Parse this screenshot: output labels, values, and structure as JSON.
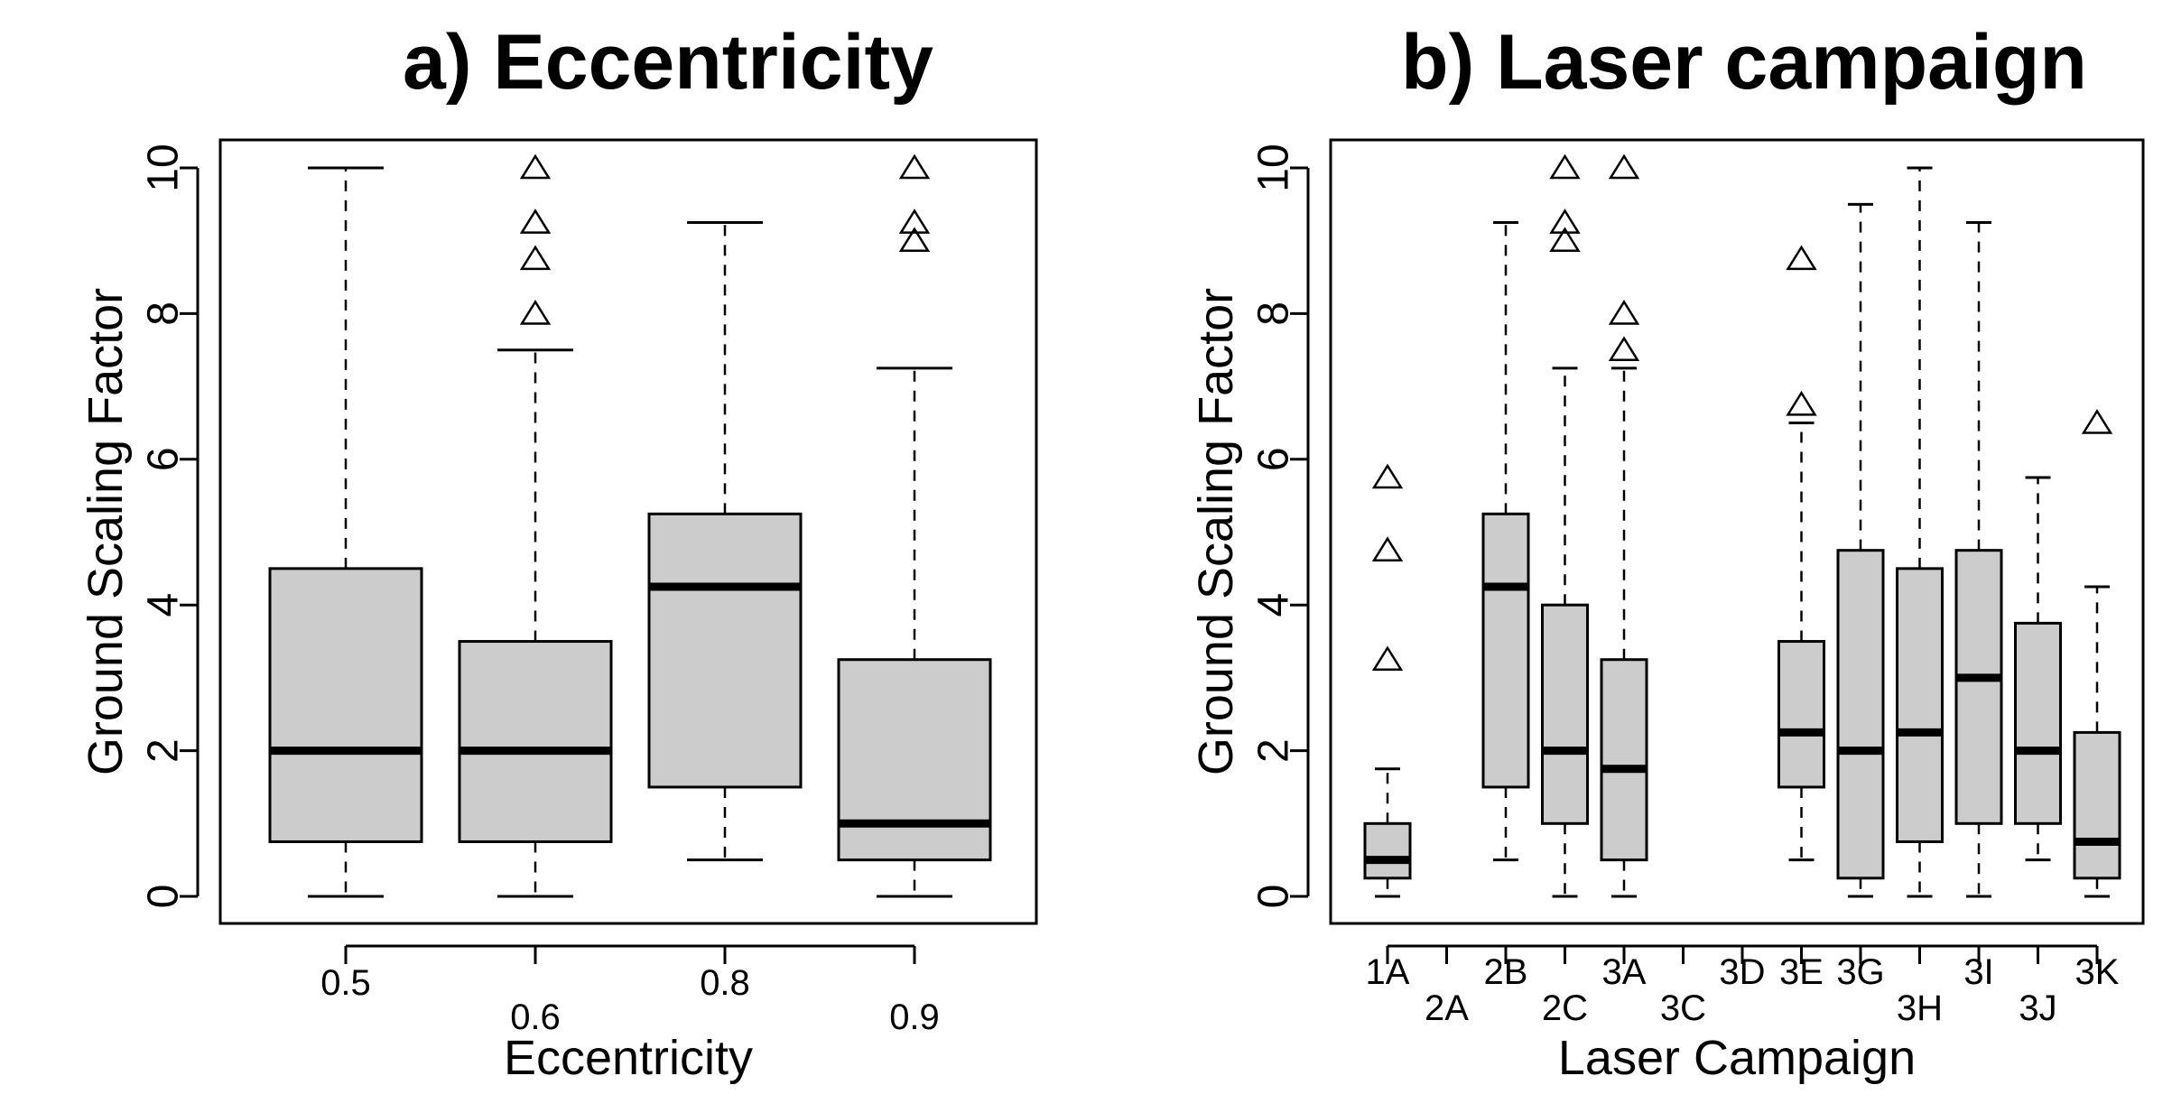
{
  "chart_data": [
    {
      "type": "box",
      "title": "a) Eccentricity",
      "xlabel": "Eccentricity",
      "ylabel": "Ground Scaling Factor",
      "ylim": [
        0,
        10
      ],
      "yticks": [
        "0",
        "2",
        "4",
        "6",
        "8",
        "10"
      ],
      "fill_color": "#cccccc",
      "categories": [
        "0.5",
        "0.6",
        "0.8",
        "0.9"
      ],
      "label_row": [
        0,
        1,
        0,
        1
      ],
      "boxes": [
        {
          "min": 0,
          "q1": 0.75,
          "median": 2.0,
          "q3": 4.5,
          "max": 10,
          "outliers": []
        },
        {
          "min": 0,
          "q1": 0.75,
          "median": 2.0,
          "q3": 3.5,
          "max": 7.5,
          "outliers": [
            8,
            8.75,
            9.25,
            10
          ]
        },
        {
          "min": 0.5,
          "q1": 1.5,
          "median": 4.25,
          "q3": 5.25,
          "max": 9.25,
          "outliers": []
        },
        {
          "min": 0,
          "q1": 0.5,
          "median": 1.0,
          "q3": 3.25,
          "max": 7.25,
          "outliers": [
            9,
            9.25,
            10
          ]
        }
      ]
    },
    {
      "type": "box",
      "title": "b) Laser campaign",
      "xlabel": "Laser Campaign",
      "ylabel": "Ground Scaling Factor",
      "ylim": [
        0,
        10
      ],
      "yticks": [
        "0",
        "2",
        "4",
        "6",
        "8",
        "10"
      ],
      "fill_color": "#cccccc",
      "categories": [
        "1A",
        "2A",
        "2B",
        "2C",
        "3A",
        "3C",
        "3D",
        "3E",
        "3G",
        "3H",
        "3I",
        "3J",
        "3K"
      ],
      "label_row": [
        0,
        1,
        0,
        1,
        0,
        1,
        0,
        0,
        0,
        1,
        0,
        1,
        0
      ],
      "boxes": [
        {
          "min": 0,
          "q1": 0.25,
          "median": 0.5,
          "q3": 1.0,
          "max": 1.75,
          "outliers": [
            3.25,
            4.75,
            5.75
          ]
        },
        null,
        {
          "min": 0.5,
          "q1": 1.5,
          "median": 4.25,
          "q3": 5.25,
          "max": 9.25,
          "outliers": []
        },
        {
          "min": 0,
          "q1": 1.0,
          "median": 2.0,
          "q3": 4.0,
          "max": 7.25,
          "outliers": [
            9,
            9.25,
            10
          ]
        },
        {
          "min": 0,
          "q1": 0.5,
          "median": 1.75,
          "q3": 3.25,
          "max": 7.25,
          "outliers": [
            7.5,
            8,
            10
          ]
        },
        null,
        null,
        {
          "min": 0.5,
          "q1": 1.5,
          "median": 2.25,
          "q3": 3.5,
          "max": 6.5,
          "outliers": [
            6.75,
            8.75
          ]
        },
        {
          "min": 0,
          "q1": 0.25,
          "median": 2.0,
          "q3": 4.75,
          "max": 9.5,
          "outliers": []
        },
        {
          "min": 0,
          "q1": 0.75,
          "median": 2.25,
          "q3": 4.5,
          "max": 10,
          "outliers": []
        },
        {
          "min": 0,
          "q1": 1.0,
          "median": 3.0,
          "q3": 4.75,
          "max": 9.25,
          "outliers": []
        },
        {
          "min": 0.5,
          "q1": 1.0,
          "median": 2.0,
          "q3": 3.75,
          "max": 5.75,
          "outliers": []
        },
        {
          "min": 0,
          "q1": 0.25,
          "median": 0.75,
          "q3": 2.25,
          "max": 4.25,
          "outliers": [
            6.5
          ]
        }
      ]
    }
  ]
}
